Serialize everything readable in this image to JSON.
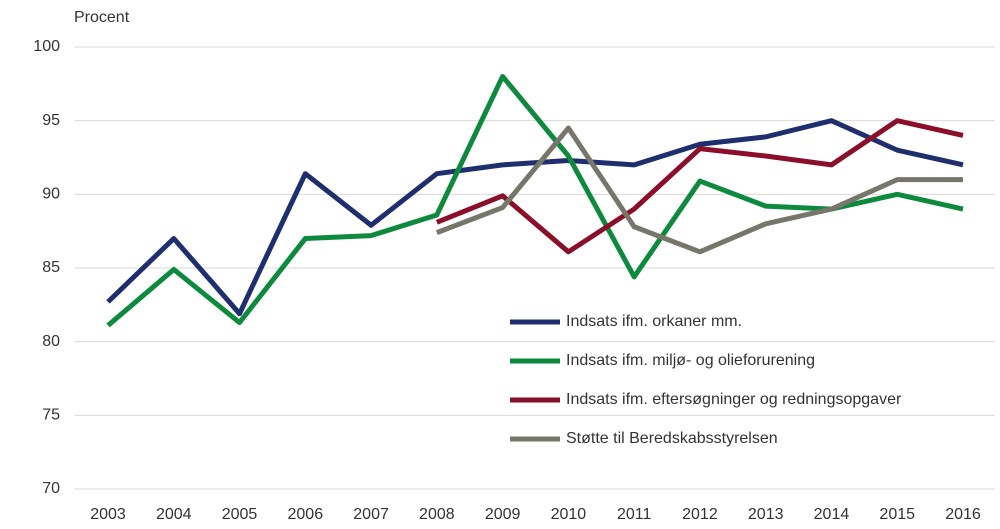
{
  "chart_data": {
    "type": "line",
    "y_label": "Procent",
    "categories": [
      "2003",
      "2004",
      "2005",
      "2006",
      "2007",
      "2008",
      "2009",
      "2010",
      "2011",
      "2012",
      "2013",
      "2014",
      "2015",
      "2016"
    ],
    "series": [
      {
        "name": "Indsats ifm. orkaner mm.",
        "color": "#1f2f6e",
        "values": [
          82.7,
          87,
          81.9,
          91.4,
          87.9,
          91.4,
          92,
          92.3,
          92,
          93.4,
          93.9,
          95,
          93,
          92
        ]
      },
      {
        "name": "Indsats ifm. miljø- og olieforurening",
        "color": "#0e8a3e",
        "values": [
          81.1,
          84.9,
          81.3,
          87,
          87.2,
          88.6,
          98,
          92.6,
          84.4,
          90.9,
          89.2,
          89,
          90,
          89
        ]
      },
      {
        "name": "Indsats ifm. eftersøgninger og redningsopgaver",
        "color": "#8b0e2a",
        "values": [
          null,
          null,
          null,
          null,
          null,
          88.1,
          89.9,
          86.1,
          89,
          93.1,
          92.6,
          92,
          95,
          94
        ]
      },
      {
        "name": "Støtte til Beredskabsstyrelsen",
        "color": "#76766b",
        "values": [
          null,
          null,
          null,
          null,
          null,
          87.4,
          89.1,
          94.5,
          87.8,
          86.1,
          88,
          89,
          91,
          91
        ]
      }
    ],
    "ylim": [
      70,
      100
    ],
    "yticks": [
      70,
      75,
      80,
      85,
      90,
      95,
      100
    ],
    "grid": true
  }
}
